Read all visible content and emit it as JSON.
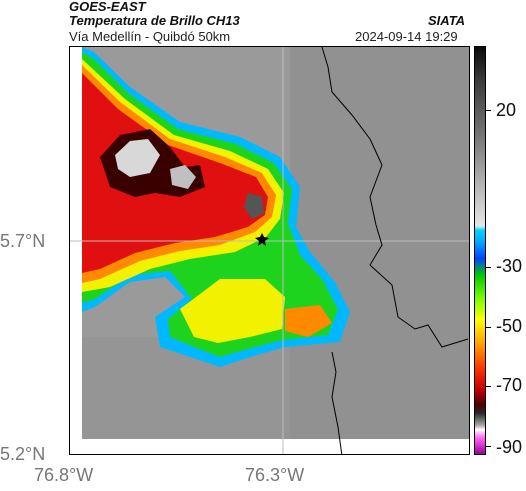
{
  "header": {
    "satellite": "GOES-EAST",
    "product": "Temperatura de Brillo CH13",
    "organization": "SIATA",
    "region": "Vía Medellín - Quibdó 50km",
    "datetime": "2024-09-14 19:29"
  },
  "axes": {
    "lat_ticks": [
      "5.7°N",
      "5.2°N"
    ],
    "lon_ticks": [
      "76.8°W",
      "76.3°W"
    ]
  },
  "colorbar": {
    "labels": [
      "20",
      "-30",
      "-50",
      "-70",
      "-90"
    ],
    "colors": [
      "#0a0a0a",
      "#777777",
      "#e6e6e6",
      "#00d8ff",
      "#0044ff",
      "#00c800",
      "#ffff00",
      "#ffa000",
      "#c80000",
      "#4a0000",
      "#ffffff",
      "#9b009b"
    ]
  },
  "map": {
    "marker": "black star (Medellín - Quibdó route point)",
    "background_color": "#9a9a9a"
  }
}
